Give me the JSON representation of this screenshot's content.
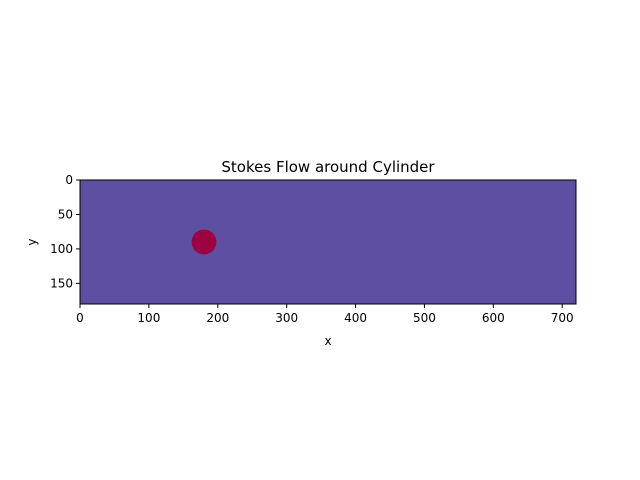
{
  "chart_data": {
    "type": "heatmap",
    "title": "Stokes Flow around Cylinder",
    "xlabel": "x",
    "ylabel": "y",
    "xlim": [
      0,
      720
    ],
    "ylim": [
      180,
      0
    ],
    "y_inverted": true,
    "x_ticks": [
      0,
      100,
      200,
      300,
      400,
      500,
      600,
      700
    ],
    "y_ticks": [
      0,
      50,
      100,
      150
    ],
    "grid": false,
    "background_color": "#5e4fa2",
    "obstacle": {
      "shape": "circle",
      "center_x": 180,
      "center_y": 90,
      "radius": 18,
      "color": "#9e0142"
    }
  }
}
